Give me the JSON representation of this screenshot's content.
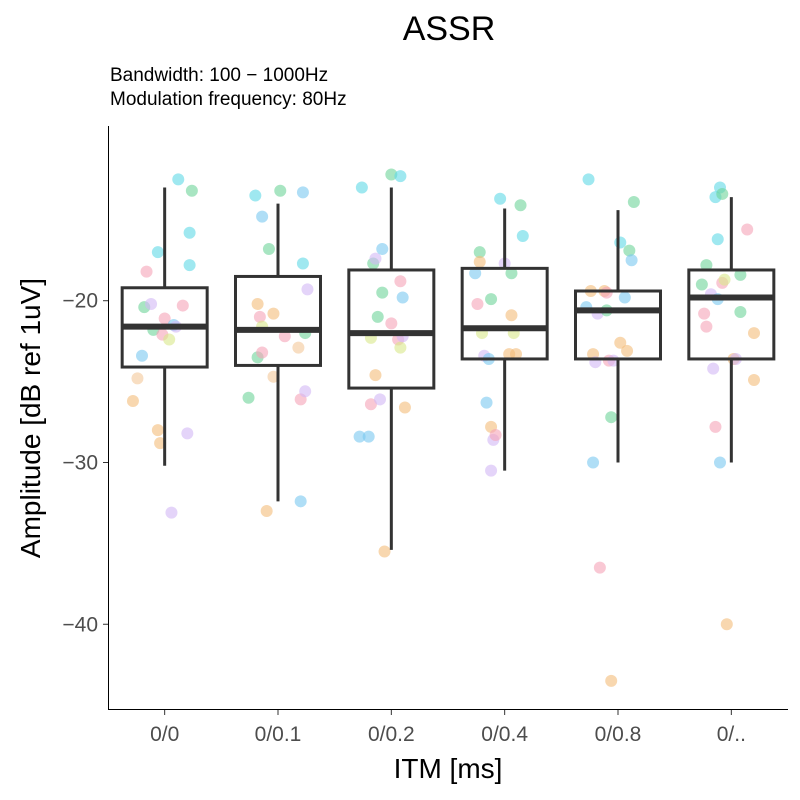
{
  "chart_data": {
    "type": "boxplot",
    "title": "ASSR",
    "subtitle_lines": [
      "Bandwidth: 100 − 1000Hz",
      "Modulation frequency: 80Hz"
    ],
    "xlabel": "ITM [ms]",
    "ylabel": "Amplitude [dB ref 1uV]",
    "ylim": [
      -45.3,
      -9.2
    ],
    "y_ticks": [
      -20,
      -30,
      -40
    ],
    "y_tick_labels": [
      "−20",
      "−30",
      "−40"
    ],
    "grid": false,
    "legend": "none",
    "categories": [
      "0/0",
      "0/0.1",
      "0/0.2",
      "0/0.4",
      "0/0.8",
      "0/.."
    ],
    "boxes": [
      {
        "category": "0/0",
        "whisker_low": -30.2,
        "q1": -24.1,
        "median": -21.6,
        "q3": -19.2,
        "whisker_high": -13.0
      },
      {
        "category": "0/0.1",
        "whisker_low": -32.4,
        "q1": -24.0,
        "median": -21.8,
        "q3": -18.5,
        "whisker_high": -14.0
      },
      {
        "category": "0/0.2",
        "whisker_low": -35.4,
        "q1": -25.4,
        "median": -22.0,
        "q3": -18.1,
        "whisker_high": -13.0
      },
      {
        "category": "0/0.4",
        "whisker_low": -30.5,
        "q1": -23.6,
        "median": -21.7,
        "q3": -18.0,
        "whisker_high": -14.3
      },
      {
        "category": "0/0.8",
        "whisker_low": -30.0,
        "q1": -23.6,
        "median": -20.6,
        "q3": -19.4,
        "whisker_high": -14.4
      },
      {
        "category": "0/..",
        "whisker_low": -30.0,
        "q1": -23.6,
        "median": -19.8,
        "q3": -18.1,
        "whisker_high": -13.6
      }
    ],
    "points": [
      {
        "category": "0/0",
        "offset": -0.28,
        "y": -26.2,
        "color": "#f4bd7a"
      },
      {
        "category": "0/0",
        "offset": -0.24,
        "y": -24.8,
        "color": "#f4c89a"
      },
      {
        "category": "0/0",
        "offset": -0.2,
        "y": -23.4,
        "color": "#7ac8f0"
      },
      {
        "category": "0/0",
        "offset": -0.18,
        "y": -20.4,
        "color": "#6ed39a"
      },
      {
        "category": "0/0",
        "offset": -0.16,
        "y": -18.2,
        "color": "#f5a3b8"
      },
      {
        "category": "0/0",
        "offset": -0.12,
        "y": -20.2,
        "color": "#d2b8f5"
      },
      {
        "category": "0/0",
        "offset": -0.1,
        "y": -21.8,
        "color": "#6ed39a"
      },
      {
        "category": "0/0",
        "offset": -0.06,
        "y": -17.0,
        "color": "#5fd8e6"
      },
      {
        "category": "0/0",
        "offset": -0.06,
        "y": -28.0,
        "color": "#f4bd7a"
      },
      {
        "category": "0/0",
        "offset": -0.04,
        "y": -28.8,
        "color": "#f4bd7a"
      },
      {
        "category": "0/0",
        "offset": -0.02,
        "y": -22.1,
        "color": "#f5a3b8"
      },
      {
        "category": "0/0",
        "offset": 0.0,
        "y": -21.1,
        "color": "#f5a3b8"
      },
      {
        "category": "0/0",
        "offset": 0.04,
        "y": -22.4,
        "color": "#d9e88a"
      },
      {
        "category": "0/0",
        "offset": 0.06,
        "y": -33.1,
        "color": "#d2b8f5"
      },
      {
        "category": "0/0",
        "offset": 0.08,
        "y": -21.5,
        "color": "#7ac8f0"
      },
      {
        "category": "0/0",
        "offset": 0.1,
        "y": -21.6,
        "color": "#d2b8f5"
      },
      {
        "category": "0/0",
        "offset": 0.12,
        "y": -12.5,
        "color": "#5fd8e6"
      },
      {
        "category": "0/0",
        "offset": 0.16,
        "y": -20.3,
        "color": "#f5a3b8"
      },
      {
        "category": "0/0",
        "offset": 0.2,
        "y": -28.2,
        "color": "#d2b8f5"
      },
      {
        "category": "0/0",
        "offset": 0.22,
        "y": -17.8,
        "color": "#5fd8e6"
      },
      {
        "category": "0/0",
        "offset": 0.22,
        "y": -15.8,
        "color": "#5fd8e6"
      },
      {
        "category": "0/0",
        "offset": 0.24,
        "y": -13.2,
        "color": "#6ed39a"
      },
      {
        "category": "0/0.1",
        "offset": -0.26,
        "y": -26.0,
        "color": "#6ed39a"
      },
      {
        "category": "0/0.1",
        "offset": -0.2,
        "y": -13.5,
        "color": "#5fd8e6"
      },
      {
        "category": "0/0.1",
        "offset": -0.18,
        "y": -20.2,
        "color": "#f4bd7a"
      },
      {
        "category": "0/0.1",
        "offset": -0.18,
        "y": -23.5,
        "color": "#6ed39a"
      },
      {
        "category": "0/0.1",
        "offset": -0.16,
        "y": -21.0,
        "color": "#f5a3b8"
      },
      {
        "category": "0/0.1",
        "offset": -0.14,
        "y": -21.6,
        "color": "#d9e88a"
      },
      {
        "category": "0/0.1",
        "offset": -0.14,
        "y": -23.2,
        "color": "#f5a3b8"
      },
      {
        "category": "0/0.1",
        "offset": -0.14,
        "y": -14.8,
        "color": "#7ac8f0"
      },
      {
        "category": "0/0.1",
        "offset": -0.1,
        "y": -33.0,
        "color": "#f4bd7a"
      },
      {
        "category": "0/0.1",
        "offset": -0.08,
        "y": -16.8,
        "color": "#6ed39a"
      },
      {
        "category": "0/0.1",
        "offset": -0.04,
        "y": -24.7,
        "color": "#f4c89a"
      },
      {
        "category": "0/0.1",
        "offset": -0.04,
        "y": -20.8,
        "color": "#f4bd7a"
      },
      {
        "category": "0/0.1",
        "offset": 0.02,
        "y": -13.2,
        "color": "#6ed39a"
      },
      {
        "category": "0/0.1",
        "offset": 0.06,
        "y": -22.2,
        "color": "#f5a3b8"
      },
      {
        "category": "0/0.1",
        "offset": 0.18,
        "y": -22.9,
        "color": "#f4c89a"
      },
      {
        "category": "0/0.1",
        "offset": 0.2,
        "y": -26.1,
        "color": "#f5a3b8"
      },
      {
        "category": "0/0.1",
        "offset": 0.2,
        "y": -32.4,
        "color": "#7ac8f0"
      },
      {
        "category": "0/0.1",
        "offset": 0.22,
        "y": -17.7,
        "color": "#5fd8e6"
      },
      {
        "category": "0/0.1",
        "offset": 0.22,
        "y": -13.3,
        "color": "#7ac8f0"
      },
      {
        "category": "0/0.1",
        "offset": 0.24,
        "y": -25.6,
        "color": "#d2b8f5"
      },
      {
        "category": "0/0.1",
        "offset": 0.24,
        "y": -22.0,
        "color": "#6ed39a"
      },
      {
        "category": "0/0.1",
        "offset": 0.26,
        "y": -19.3,
        "color": "#d2b8f5"
      },
      {
        "category": "0/0.2",
        "offset": -0.28,
        "y": -28.4,
        "color": "#7ac8f0"
      },
      {
        "category": "0/0.2",
        "offset": -0.26,
        "y": -13.0,
        "color": "#5fd8e6"
      },
      {
        "category": "0/0.2",
        "offset": -0.2,
        "y": -28.4,
        "color": "#7ac8f0"
      },
      {
        "category": "0/0.2",
        "offset": -0.18,
        "y": -26.4,
        "color": "#f5a3b8"
      },
      {
        "category": "0/0.2",
        "offset": -0.18,
        "y": -22.3,
        "color": "#d9e88a"
      },
      {
        "category": "0/0.2",
        "offset": -0.16,
        "y": -17.7,
        "color": "#6ed39a"
      },
      {
        "category": "0/0.2",
        "offset": -0.14,
        "y": -17.4,
        "color": "#d2b8f5"
      },
      {
        "category": "0/0.2",
        "offset": -0.14,
        "y": -24.6,
        "color": "#f4bd7a"
      },
      {
        "category": "0/0.2",
        "offset": -0.12,
        "y": -21.0,
        "color": "#6ed39a"
      },
      {
        "category": "0/0.2",
        "offset": -0.1,
        "y": -26.1,
        "color": "#d2b8f5"
      },
      {
        "category": "0/0.2",
        "offset": -0.08,
        "y": -19.5,
        "color": "#6ed39a"
      },
      {
        "category": "0/0.2",
        "offset": -0.08,
        "y": -16.8,
        "color": "#7ac8f0"
      },
      {
        "category": "0/0.2",
        "offset": -0.06,
        "y": -35.5,
        "color": "#f4bd7a"
      },
      {
        "category": "0/0.2",
        "offset": 0.0,
        "y": -12.2,
        "color": "#6ed39a"
      },
      {
        "category": "0/0.2",
        "offset": 0.0,
        "y": -21.4,
        "color": "#f5a3b8"
      },
      {
        "category": "0/0.2",
        "offset": 0.06,
        "y": -22.4,
        "color": "#f5a3b8"
      },
      {
        "category": "0/0.2",
        "offset": 0.08,
        "y": -18.8,
        "color": "#f5a3b8"
      },
      {
        "category": "0/0.2",
        "offset": 0.08,
        "y": -22.9,
        "color": "#d9e88a"
      },
      {
        "category": "0/0.2",
        "offset": 0.08,
        "y": -12.3,
        "color": "#5fd8e6"
      },
      {
        "category": "0/0.2",
        "offset": 0.1,
        "y": -19.8,
        "color": "#7ac8f0"
      },
      {
        "category": "0/0.2",
        "offset": 0.1,
        "y": -22.2,
        "color": "#d2b8f5"
      },
      {
        "category": "0/0.2",
        "offset": 0.12,
        "y": -26.6,
        "color": "#f4bd7a"
      },
      {
        "category": "0/0.4",
        "offset": -0.26,
        "y": -18.3,
        "color": "#7ac8f0"
      },
      {
        "category": "0/0.4",
        "offset": -0.24,
        "y": -20.2,
        "color": "#f5a3b8"
      },
      {
        "category": "0/0.4",
        "offset": -0.22,
        "y": -17.0,
        "color": "#6ed39a"
      },
      {
        "category": "0/0.4",
        "offset": -0.22,
        "y": -17.6,
        "color": "#f4bd7a"
      },
      {
        "category": "0/0.4",
        "offset": -0.2,
        "y": -22.0,
        "color": "#d9e88a"
      },
      {
        "category": "0/0.4",
        "offset": -0.18,
        "y": -23.4,
        "color": "#d2b8f5"
      },
      {
        "category": "0/0.4",
        "offset": -0.16,
        "y": -26.3,
        "color": "#7ac8f0"
      },
      {
        "category": "0/0.4",
        "offset": -0.14,
        "y": -23.6,
        "color": "#7ac8f0"
      },
      {
        "category": "0/0.4",
        "offset": -0.12,
        "y": -30.5,
        "color": "#d2b8f5"
      },
      {
        "category": "0/0.4",
        "offset": -0.12,
        "y": -27.8,
        "color": "#f4bd7a"
      },
      {
        "category": "0/0.4",
        "offset": -0.12,
        "y": -19.9,
        "color": "#6ed39a"
      },
      {
        "category": "0/0.4",
        "offset": -0.1,
        "y": -28.6,
        "color": "#d2b8f5"
      },
      {
        "category": "0/0.4",
        "offset": -0.08,
        "y": -28.3,
        "color": "#f5a3b8"
      },
      {
        "category": "0/0.4",
        "offset": -0.04,
        "y": -13.7,
        "color": "#5fd8e6"
      },
      {
        "category": "0/0.4",
        "offset": 0.0,
        "y": -17.7,
        "color": "#d2b8f5"
      },
      {
        "category": "0/0.4",
        "offset": 0.04,
        "y": -23.3,
        "color": "#f4bd7a"
      },
      {
        "category": "0/0.4",
        "offset": 0.06,
        "y": -20.9,
        "color": "#f4bd7a"
      },
      {
        "category": "0/0.4",
        "offset": 0.06,
        "y": -18.3,
        "color": "#6ed39a"
      },
      {
        "category": "0/0.4",
        "offset": 0.08,
        "y": -22.0,
        "color": "#d9e88a"
      },
      {
        "category": "0/0.4",
        "offset": 0.1,
        "y": -23.3,
        "color": "#f4bd7a"
      },
      {
        "category": "0/0.4",
        "offset": 0.14,
        "y": -14.1,
        "color": "#6ed39a"
      },
      {
        "category": "0/0.4",
        "offset": 0.16,
        "y": -16.0,
        "color": "#5fd8e6"
      },
      {
        "category": "0/0.8",
        "offset": -0.28,
        "y": -20.4,
        "color": "#7ac8f0"
      },
      {
        "category": "0/0.8",
        "offset": -0.26,
        "y": -12.5,
        "color": "#5fd8e6"
      },
      {
        "category": "0/0.8",
        "offset": -0.24,
        "y": -19.4,
        "color": "#f4bd7a"
      },
      {
        "category": "0/0.8",
        "offset": -0.22,
        "y": -23.3,
        "color": "#f4bd7a"
      },
      {
        "category": "0/0.8",
        "offset": -0.22,
        "y": -30.0,
        "color": "#7ac8f0"
      },
      {
        "category": "0/0.8",
        "offset": -0.2,
        "y": -23.8,
        "color": "#d2b8f5"
      },
      {
        "category": "0/0.8",
        "offset": -0.18,
        "y": -20.8,
        "color": "#d2b8f5"
      },
      {
        "category": "0/0.8",
        "offset": -0.16,
        "y": -36.5,
        "color": "#f5a3b8"
      },
      {
        "category": "0/0.8",
        "offset": -0.12,
        "y": -19.4,
        "color": "#f4bd7a"
      },
      {
        "category": "0/0.8",
        "offset": -0.1,
        "y": -19.5,
        "color": "#f5a3b8"
      },
      {
        "category": "0/0.8",
        "offset": -0.1,
        "y": -20.6,
        "color": "#6ed39a"
      },
      {
        "category": "0/0.8",
        "offset": -0.08,
        "y": -23.7,
        "color": "#f5a3b8"
      },
      {
        "category": "0/0.8",
        "offset": -0.06,
        "y": -43.5,
        "color": "#f4bd7a"
      },
      {
        "category": "0/0.8",
        "offset": -0.06,
        "y": -27.2,
        "color": "#6ed39a"
      },
      {
        "category": "0/0.8",
        "offset": -0.04,
        "y": -23.7,
        "color": "#d2b8f5"
      },
      {
        "category": "0/0.8",
        "offset": 0.02,
        "y": -22.6,
        "color": "#f4bd7a"
      },
      {
        "category": "0/0.8",
        "offset": 0.02,
        "y": -16.4,
        "color": "#5fd8e6"
      },
      {
        "category": "0/0.8",
        "offset": 0.06,
        "y": -19.8,
        "color": "#7ac8f0"
      },
      {
        "category": "0/0.8",
        "offset": 0.08,
        "y": -23.1,
        "color": "#f4bd7a"
      },
      {
        "category": "0/0.8",
        "offset": 0.1,
        "y": -16.9,
        "color": "#6ed39a"
      },
      {
        "category": "0/0.8",
        "offset": 0.12,
        "y": -17.5,
        "color": "#7ac8f0"
      },
      {
        "category": "0/0.8",
        "offset": 0.14,
        "y": -13.9,
        "color": "#6ed39a"
      },
      {
        "category": "0/..",
        "offset": -0.26,
        "y": -19.0,
        "color": "#6ed39a"
      },
      {
        "category": "0/..",
        "offset": -0.24,
        "y": -20.8,
        "color": "#f5a3b8"
      },
      {
        "category": "0/..",
        "offset": -0.22,
        "y": -21.6,
        "color": "#f5a3b8"
      },
      {
        "category": "0/..",
        "offset": -0.22,
        "y": -17.8,
        "color": "#6ed39a"
      },
      {
        "category": "0/..",
        "offset": -0.18,
        "y": -19.6,
        "color": "#d2b8f5"
      },
      {
        "category": "0/..",
        "offset": -0.16,
        "y": -24.2,
        "color": "#d2b8f5"
      },
      {
        "category": "0/..",
        "offset": -0.14,
        "y": -13.6,
        "color": "#5fd8e6"
      },
      {
        "category": "0/..",
        "offset": -0.14,
        "y": -27.8,
        "color": "#f5a3b8"
      },
      {
        "category": "0/..",
        "offset": -0.12,
        "y": -19.9,
        "color": "#7ac8f0"
      },
      {
        "category": "0/..",
        "offset": -0.12,
        "y": -16.2,
        "color": "#5fd8e6"
      },
      {
        "category": "0/..",
        "offset": -0.1,
        "y": -13.0,
        "color": "#5fd8e6"
      },
      {
        "category": "0/..",
        "offset": -0.1,
        "y": -30.0,
        "color": "#7ac8f0"
      },
      {
        "category": "0/..",
        "offset": -0.08,
        "y": -18.9,
        "color": "#f5a3b8"
      },
      {
        "category": "0/..",
        "offset": -0.08,
        "y": -13.4,
        "color": "#6ed39a"
      },
      {
        "category": "0/..",
        "offset": -0.06,
        "y": -18.7,
        "color": "#d9e88a"
      },
      {
        "category": "0/..",
        "offset": -0.04,
        "y": -40.0,
        "color": "#f4bd7a"
      },
      {
        "category": "0/..",
        "offset": 0.02,
        "y": -23.6,
        "color": "#f4bd7a"
      },
      {
        "category": "0/..",
        "offset": 0.04,
        "y": -23.6,
        "color": "#d2b8f5"
      },
      {
        "category": "0/..",
        "offset": 0.08,
        "y": -18.4,
        "color": "#6ed39a"
      },
      {
        "category": "0/..",
        "offset": 0.08,
        "y": -20.7,
        "color": "#6ed39a"
      },
      {
        "category": "0/..",
        "offset": 0.14,
        "y": -15.6,
        "color": "#f5a3b8"
      },
      {
        "category": "0/..",
        "offset": 0.2,
        "y": -22.0,
        "color": "#f4bd7a"
      },
      {
        "category": "0/..",
        "offset": 0.2,
        "y": -24.9,
        "color": "#f4bd7a"
      }
    ]
  }
}
